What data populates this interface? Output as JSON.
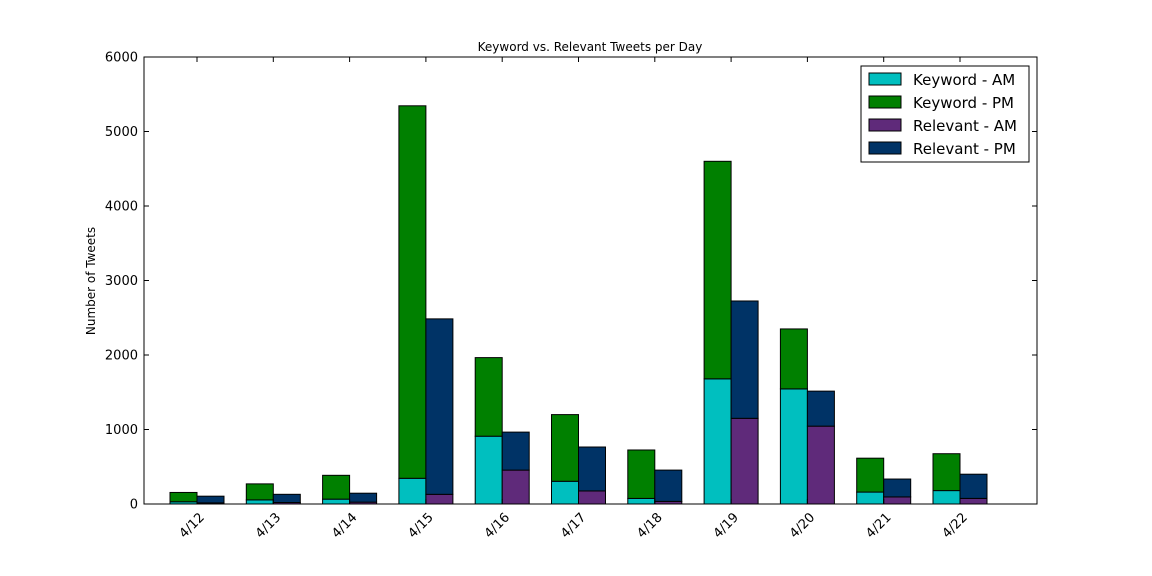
{
  "chart_data": {
    "type": "bar",
    "stacked": true,
    "title": "Keyword vs. Relevant Tweets per Day",
    "xlabel": "",
    "ylabel": "Number of Tweets",
    "ylim": [
      0,
      6000
    ],
    "yticks": [
      0,
      1000,
      2000,
      3000,
      4000,
      5000,
      6000
    ],
    "categories": [
      "4/12",
      "4/13",
      "4/14",
      "4/15",
      "4/16",
      "4/17",
      "4/18",
      "4/19",
      "4/20",
      "4/21",
      "4/22"
    ],
    "groups": [
      {
        "name": "Keyword",
        "series": [
          {
            "name": "Keyword - AM",
            "color": "#00bfbf",
            "values": [
              30,
              55,
              65,
              345,
              910,
              305,
              75,
              1680,
              1545,
              160,
              180
            ]
          },
          {
            "name": "Keyword - PM",
            "color": "#008000",
            "values": [
              125,
              215,
              320,
              5000,
              1055,
              895,
              650,
              2920,
              805,
              455,
              495
            ]
          }
        ]
      },
      {
        "name": "Relevant",
        "series": [
          {
            "name": "Relevant - AM",
            "color": "#5f2a7a",
            "values": [
              15,
              20,
              25,
              130,
              455,
              175,
              35,
              1150,
              1045,
              95,
              75
            ]
          },
          {
            "name": "Relevant - PM",
            "color": "#003366",
            "values": [
              90,
              110,
              120,
              2355,
              510,
              590,
              420,
              1575,
              470,
              240,
              325
            ]
          }
        ]
      }
    ],
    "legend": {
      "placement": "top-right",
      "entries": [
        "Keyword - AM",
        "Keyword - PM",
        "Relevant - AM",
        "Relevant - PM"
      ]
    },
    "grid": false
  }
}
